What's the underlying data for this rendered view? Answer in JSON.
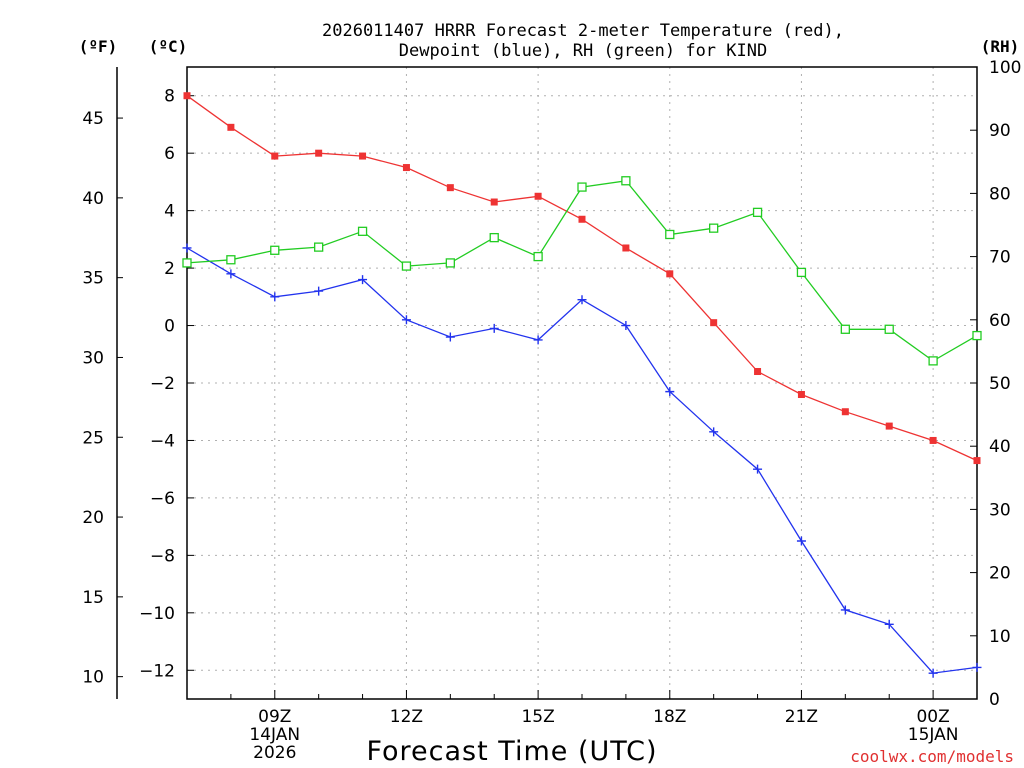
{
  "chart_data": {
    "type": "line",
    "title_line1": "2026011407 HRRR Forecast 2-meter Temperature (red),",
    "title_line2": "Dewpoint (blue), RH (green) for KIND",
    "xlabel": "Forecast Time (UTC)",
    "unit_f": "(ºF)",
    "unit_c": "(ºC)",
    "unit_rh": "(RH)",
    "credit": "coolwx.com/models",
    "x_hours": [
      7,
      8,
      9,
      10,
      11,
      12,
      13,
      14,
      15,
      16,
      17,
      18,
      19,
      20,
      21,
      22,
      23,
      24,
      25
    ],
    "xlim": [
      7,
      25
    ],
    "x_ticks": [
      {
        "hour": 9,
        "lines": [
          "09Z",
          "14JAN",
          "2026"
        ]
      },
      {
        "hour": 12,
        "lines": [
          "12Z"
        ]
      },
      {
        "hour": 15,
        "lines": [
          "15Z"
        ]
      },
      {
        "hour": 18,
        "lines": [
          "18Z"
        ]
      },
      {
        "hour": 21,
        "lines": [
          "21Z"
        ]
      },
      {
        "hour": 24,
        "lines": [
          "00Z",
          "15JAN"
        ]
      }
    ],
    "ylim_c": [
      -13,
      9
    ],
    "y_ticks_c": [
      8,
      6,
      4,
      2,
      0,
      -2,
      -4,
      -6,
      -8,
      -10,
      -12
    ],
    "y_tick_labels_c": [
      "8",
      "6",
      "4",
      "2",
      "0",
      "−2",
      "−4",
      "−6",
      "−8",
      "−10",
      "−12"
    ],
    "y_ticks_f": [
      45,
      40,
      35,
      30,
      25,
      20,
      15,
      10
    ],
    "y_tick_labels_f": [
      "45",
      "40",
      "35",
      "30",
      "25",
      "20",
      "15",
      "10"
    ],
    "ylim_rh": [
      0,
      100
    ],
    "y_ticks_rh": [
      100,
      90,
      80,
      70,
      60,
      50,
      40,
      30,
      20,
      10,
      0
    ],
    "y_tick_labels_rh": [
      "100",
      "90",
      "80",
      "70",
      "60",
      "50",
      "40",
      "30",
      "20",
      "10",
      "0"
    ],
    "series": [
      {
        "name": "Temperature",
        "color": "#ee3333",
        "marker": "filled-square",
        "values": [
          8.0,
          6.9,
          5.9,
          6.0,
          5.9,
          5.5,
          4.8,
          4.3,
          4.5,
          3.7,
          2.7,
          1.8,
          0.1,
          -1.6,
          -2.4,
          -3.0,
          -3.5,
          -4.0,
          -4.7
        ]
      },
      {
        "name": "Dewpoint",
        "color": "#2233ee",
        "marker": "plus",
        "values": [
          2.7,
          1.8,
          1.0,
          1.2,
          1.6,
          0.2,
          -0.4,
          -0.1,
          -0.5,
          0.9,
          0.0,
          -2.3,
          -3.7,
          -5.0,
          -7.5,
          -9.9,
          -10.4,
          -12.1,
          -11.9
        ]
      },
      {
        "name": "RH",
        "color": "#22cc22",
        "marker": "open-square",
        "axis": "rh",
        "values": [
          69,
          69.5,
          71,
          71.5,
          74,
          68.5,
          69,
          73,
          70,
          81,
          82,
          73.5,
          74.5,
          77,
          67.5,
          58.5,
          58.5,
          53.5,
          57.5
        ]
      }
    ]
  }
}
